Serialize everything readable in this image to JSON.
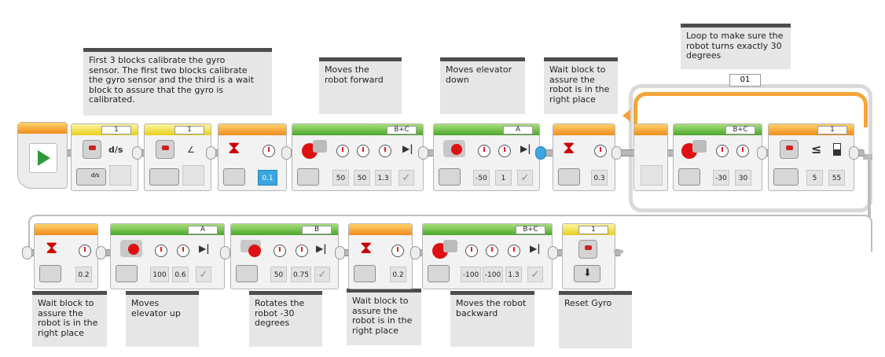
{
  "comments": {
    "gyro_calibrate": "First 3 blocks calibrate the gyro\nsensor. The first two blocks calibrate\nthe gyro sensor and the third is a wait\nblock to assure that the gyro is\ncalibrated.",
    "moves_forward": "Moves the\nrobot forward",
    "moves_elevator_down": "Moves elevator\ndown",
    "wait_row1": "Wait block to\nassure the\nrobot is in the\nright place",
    "loop": "Loop to make sure the\nrobot turns exactly 30\ndegrees",
    "wait_row2a": "Wait block to\nassure the\nrobot is in the\nright place",
    "moves_elevator_up": "Moves\nelevator up",
    "rotates": "Rotates the\nrobot -30\ndegrees",
    "wait_row2b": "Wait block to\nassure the\nrobot is in the\nright place",
    "moves_backward": "Moves the robot\nbackward",
    "reset_gyro": "Reset Gyro"
  },
  "loop": {
    "name": "01"
  },
  "row1": {
    "gyro1": {
      "port": "1",
      "mode": "d/s",
      "mode_small": "d/s"
    },
    "gyro2": {
      "port": "1"
    },
    "wait1": {
      "time": "0.1"
    },
    "steer1": {
      "ports": "B+C",
      "v1": "50",
      "v2": "50",
      "v3": "1.3"
    },
    "medmotor1": {
      "port": "A",
      "v1": "-50",
      "v2": "1"
    },
    "wait2": {
      "time": "0.3"
    },
    "steer2": {
      "ports": "B+C",
      "v1": "-30",
      "v2": "30"
    },
    "gyrocomp": {
      "port": "1",
      "op": "≤",
      "v1": "5",
      "v2": "55"
    }
  },
  "row2": {
    "wait3": {
      "time": "0.2"
    },
    "medmotor2": {
      "port": "A",
      "v1": "100",
      "v2": "0.6"
    },
    "motorB": {
      "port": "B",
      "v1": "50",
      "v2": "0.75"
    },
    "wait4": {
      "time": "0.2"
    },
    "steer3": {
      "ports": "B+C",
      "v1": "-100",
      "v2": "-100",
      "v3": "1.3"
    },
    "reset": {
      "port": "1"
    }
  },
  "icons": {
    "start": "play-icon",
    "hourglass": "hourglass-icon",
    "timer": "stopwatch-icon",
    "gauge": "speedometer-icon",
    "rotation": "rotation-icon",
    "brake": "brake-icon",
    "check": "checkmark-icon",
    "reset": "reset-download-icon"
  },
  "colors": {
    "flow_orange": "#f08b1c",
    "sensor_yellow": "#e8cf19",
    "motor_green": "#4aa52c",
    "start_green": "#2f9a3b",
    "comment_bar": "#4d4d4d",
    "value_blue": "#3aa5de"
  }
}
